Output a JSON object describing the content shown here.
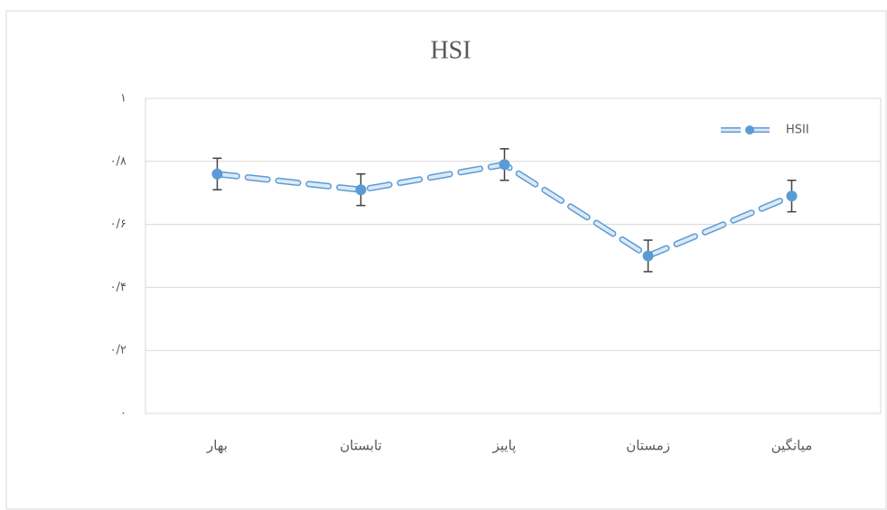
{
  "chart_data": {
    "type": "line",
    "title": "HSI",
    "categories": [
      "بهار",
      "تابستان",
      "پاییز",
      "زمستان",
      "میانگین"
    ],
    "series": [
      {
        "name": "HSII",
        "color": "#5b9bd5",
        "values": [
          0.76,
          0.71,
          0.79,
          0.5,
          0.69
        ],
        "errors": [
          0.05,
          0.05,
          0.05,
          0.05,
          0.05
        ]
      }
    ],
    "ylim": [
      0,
      1
    ],
    "yticks": [
      {
        "value": 0,
        "label": "۰"
      },
      {
        "value": 0.2,
        "label": "۰/۲"
      },
      {
        "value": 0.4,
        "label": "۰/۴"
      },
      {
        "value": 0.6,
        "label": "۰/۶"
      },
      {
        "value": 0.8,
        "label": "۰/۸"
      },
      {
        "value": 1,
        "label": "۱"
      }
    ],
    "grid": true,
    "legend": "top-right"
  }
}
